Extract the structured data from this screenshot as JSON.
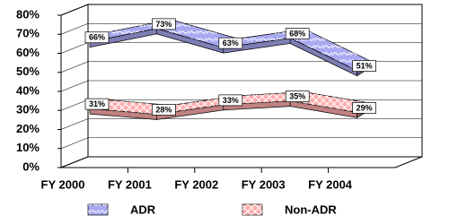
{
  "chart_data": {
    "type": "ribbon3d",
    "categories": [
      "FY 2000",
      "FY 2001",
      "FY 2002",
      "FY 2003",
      "FY 2004"
    ],
    "series": [
      {
        "name": "ADR",
        "color": "#a9a9f2",
        "values": [
          66,
          73,
          63,
          68,
          51
        ],
        "value_labels": [
          "66%",
          "73%",
          "63%",
          "68%",
          "51%"
        ]
      },
      {
        "name": "Non-ADR",
        "color": "#ffadad",
        "values": [
          31,
          28,
          33,
          35,
          29
        ],
        "value_labels": [
          "31%",
          "28%",
          "33%",
          "35%",
          "29%"
        ]
      }
    ],
    "ylim": [
      0,
      80
    ],
    "yticks": [
      {
        "value": 0,
        "label": "0%"
      },
      {
        "value": 10,
        "label": "10%"
      },
      {
        "value": 20,
        "label": "20%"
      },
      {
        "value": 30,
        "label": "30%"
      },
      {
        "value": 40,
        "label": "40%"
      },
      {
        "value": 50,
        "label": "50%"
      },
      {
        "value": 60,
        "label": "60%"
      },
      {
        "value": 70,
        "label": "70%"
      },
      {
        "value": 80,
        "label": "80%"
      }
    ],
    "grid": true,
    "legend": "bottom"
  }
}
